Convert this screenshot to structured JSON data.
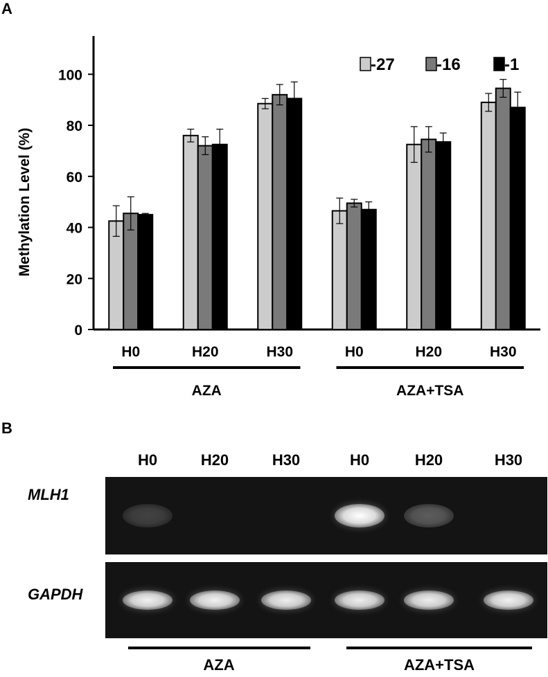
{
  "panels": {
    "a_label": "A",
    "b_label": "B"
  },
  "chart_data": {
    "type": "bar",
    "title": "",
    "xlabel": "",
    "ylabel": "Methylation Level (%)",
    "ylim": [
      0,
      115
    ],
    "yticks": [
      0,
      20,
      40,
      60,
      80,
      100
    ],
    "legend_position": "top-right",
    "categories": [
      "H0",
      "H20",
      "H30",
      "H0",
      "H20",
      "H30"
    ],
    "groups": [
      {
        "label": "AZA",
        "categories": [
          0,
          1,
          2
        ]
      },
      {
        "label": "AZA+TSA",
        "categories": [
          3,
          4,
          5
        ]
      }
    ],
    "series": [
      {
        "name": "-27",
        "color": "#cccccc",
        "values": [
          42.5,
          76.0,
          88.5,
          46.5,
          72.5,
          89.0
        ],
        "errors": [
          6.0,
          2.5,
          2.0,
          5.0,
          7.0,
          3.5
        ]
      },
      {
        "name": "-16",
        "color": "#7a7a7a",
        "values": [
          45.5,
          72.0,
          92.0,
          49.5,
          74.5,
          94.5
        ],
        "errors": [
          6.5,
          3.5,
          4.0,
          1.5,
          5.0,
          3.5
        ]
      },
      {
        "name": "-1",
        "color": "#000000",
        "values": [
          45.0,
          72.5,
          90.5,
          47.0,
          73.5,
          87.0
        ],
        "errors": [
          0.5,
          6.0,
          6.5,
          3.0,
          3.5,
          6.0
        ]
      }
    ]
  },
  "gel": {
    "lanes": [
      "H0",
      "H20",
      "H30",
      "H0",
      "H20",
      "H30"
    ],
    "rows": [
      {
        "label": "MLH1",
        "intensities": [
          0.22,
          0.0,
          0.0,
          1.0,
          0.35,
          0.0
        ]
      },
      {
        "label": "GAPDH",
        "intensities": [
          0.92,
          0.92,
          0.9,
          0.9,
          0.9,
          0.92
        ]
      }
    ],
    "groups": [
      "AZA",
      "AZA+TSA"
    ]
  }
}
